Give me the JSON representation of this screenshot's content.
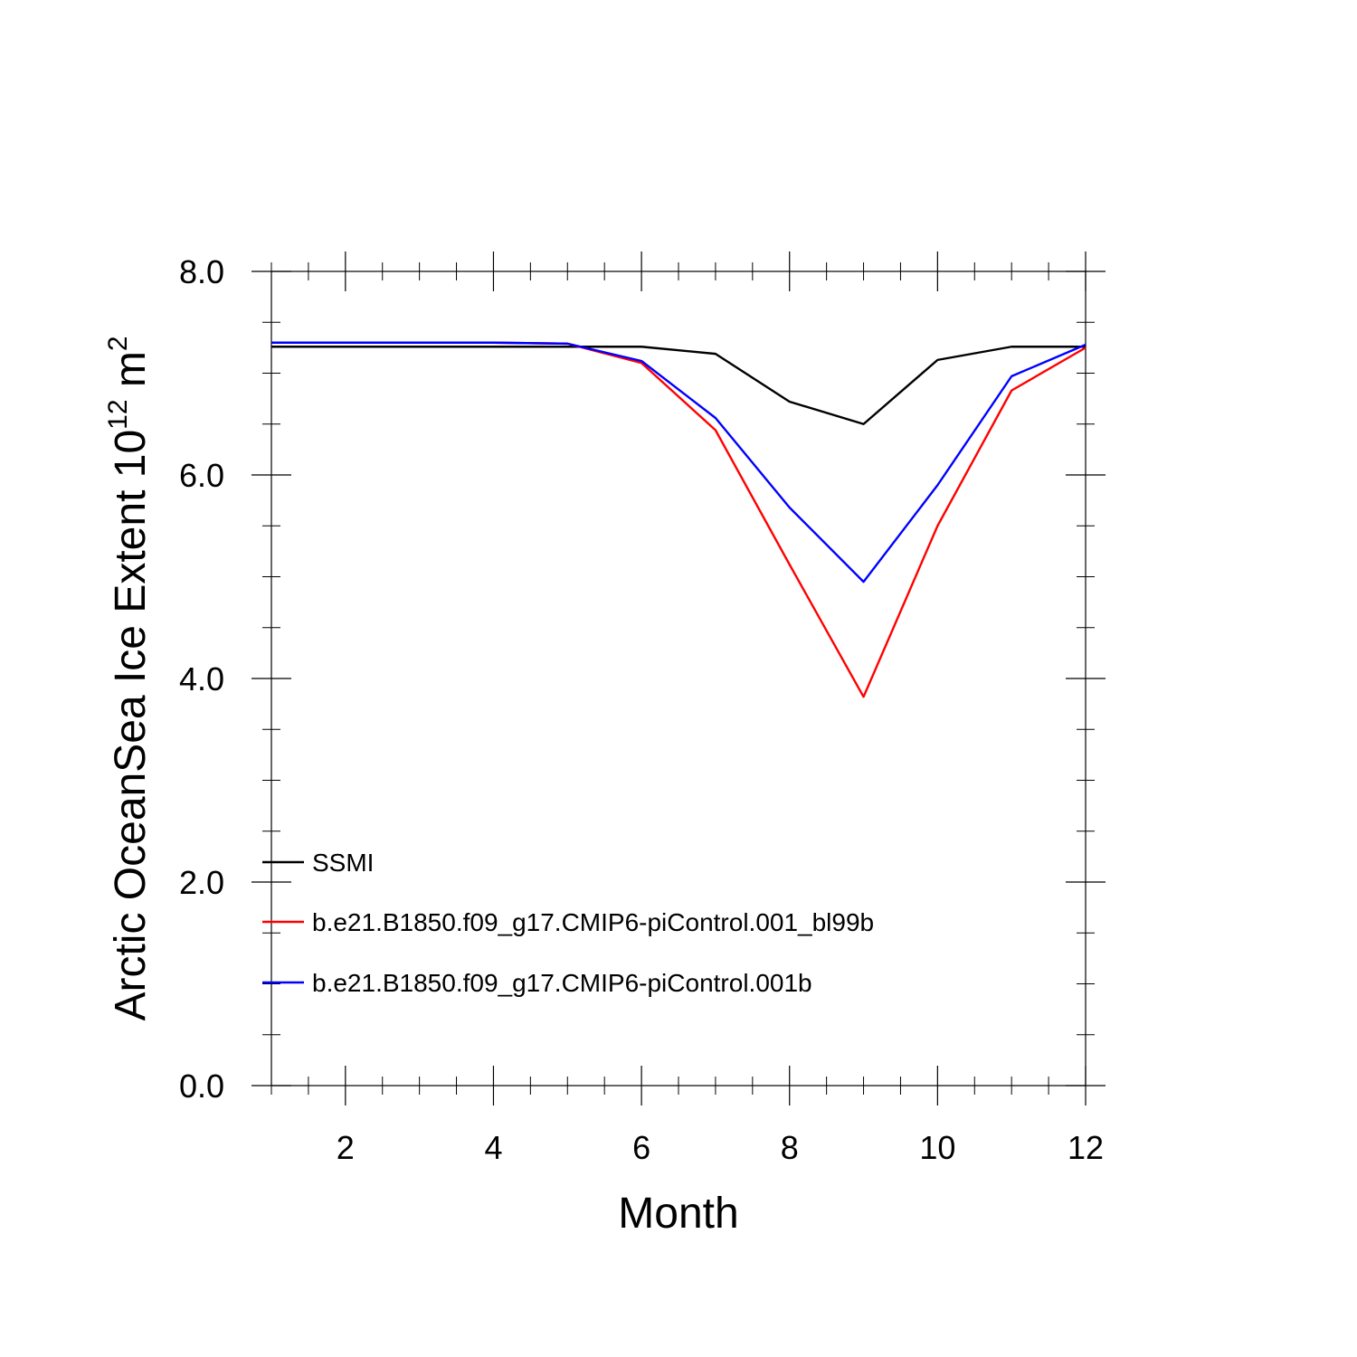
{
  "chart_data": {
    "type": "line",
    "title": "",
    "xlabel": "Month",
    "ylabel_main": "Arctic OceanSea Ice Extent 10",
    "ylabel_exp": "12",
    "ylabel_unit": " m",
    "ylabel_unit_exp": "2",
    "xlim": [
      1,
      12
    ],
    "ylim": [
      0,
      8
    ],
    "x_ticks": [
      2,
      4,
      6,
      8,
      10,
      12
    ],
    "y_ticks": [
      0,
      2,
      4,
      6,
      8
    ],
    "y_tick_labels": [
      "0.0",
      "2.0",
      "4.0",
      "6.0",
      "8.0"
    ],
    "x_minor_step": 0.5,
    "y_minor_step": 0.5,
    "legend_position": "lower-left",
    "x": [
      1,
      2,
      3,
      4,
      5,
      6,
      7,
      8,
      9,
      10,
      11,
      12
    ],
    "series": [
      {
        "name": "SSMI",
        "color": "#000000",
        "values": [
          7.26,
          7.26,
          7.26,
          7.26,
          7.26,
          7.26,
          7.19,
          6.72,
          6.5,
          7.13,
          7.26,
          7.26
        ]
      },
      {
        "name": "b.e21.B1850.f09_g17.CMIP6-piControl.001_bl99b",
        "color": "#ff0000",
        "values": [
          7.3,
          7.3,
          7.3,
          7.3,
          7.29,
          7.1,
          6.44,
          5.12,
          3.82,
          5.5,
          6.83,
          7.25
        ]
      },
      {
        "name": "b.e21.B1850.f09_g17.CMIP6-piControl.001b",
        "color": "#0000ff",
        "values": [
          7.3,
          7.3,
          7.3,
          7.3,
          7.29,
          7.12,
          6.56,
          5.68,
          4.95,
          5.9,
          6.97,
          7.28
        ]
      }
    ]
  }
}
